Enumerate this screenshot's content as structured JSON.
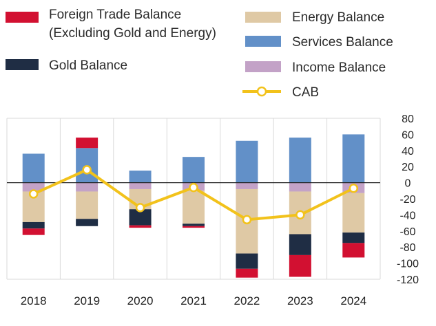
{
  "chart_data": {
    "type": "bar",
    "stacked": true,
    "categories": [
      "2018",
      "2019",
      "2020",
      "2021",
      "2022",
      "2023",
      "2024"
    ],
    "ylim": [
      -120,
      80
    ],
    "yticks": [
      80,
      60,
      40,
      20,
      0,
      -20,
      -40,
      -60,
      -80,
      -100,
      -120
    ],
    "grid": "vertical",
    "y_axis_position": "right",
    "legend_position": "top",
    "series": [
      {
        "key": "services",
        "name": "Services Balance",
        "color": "#6290c8",
        "values": [
          36,
          43,
          15,
          32,
          52,
          56,
          60
        ]
      },
      {
        "key": "income",
        "name": "Income Balance",
        "color": "#c3a2c7",
        "values": [
          -11,
          -11,
          -8,
          -10,
          -8,
          -11,
          -13
        ]
      },
      {
        "key": "energy",
        "name": "Energy Balance",
        "color": "#dfc9a5",
        "values": [
          -38,
          -34,
          -25,
          -41,
          -80,
          -53,
          -49
        ]
      },
      {
        "key": "gold",
        "name": "Gold Balance",
        "color": "#1f2d44",
        "values": [
          -8,
          -9,
          -20,
          -3,
          -19,
          -26,
          -13
        ]
      },
      {
        "key": "trade",
        "name": "Foreign Trade Balance\n(Excluding Gold and Energy)",
        "color": "#d21031",
        "values": [
          -8,
          13,
          -3,
          -2,
          -11,
          -27,
          -18
        ]
      }
    ],
    "line": {
      "name": "CAB",
      "color": "#f2c21b",
      "values": [
        -14,
        16,
        -31,
        -6,
        -46,
        -40,
        -7
      ]
    }
  },
  "legend": [
    {
      "label": "Foreign Trade Balance",
      "label2": "(Excluding Gold and Energy)",
      "color": "#d21031"
    },
    {
      "label": "Gold Balance",
      "color": "#1f2d44"
    },
    {
      "label": "Energy Balance",
      "color": "#dfc9a5"
    },
    {
      "label": "Services Balance",
      "color": "#6290c8"
    },
    {
      "label": "Income Balance",
      "color": "#c3a2c7"
    },
    {
      "label": "CAB",
      "color": "#f2c21b"
    }
  ]
}
